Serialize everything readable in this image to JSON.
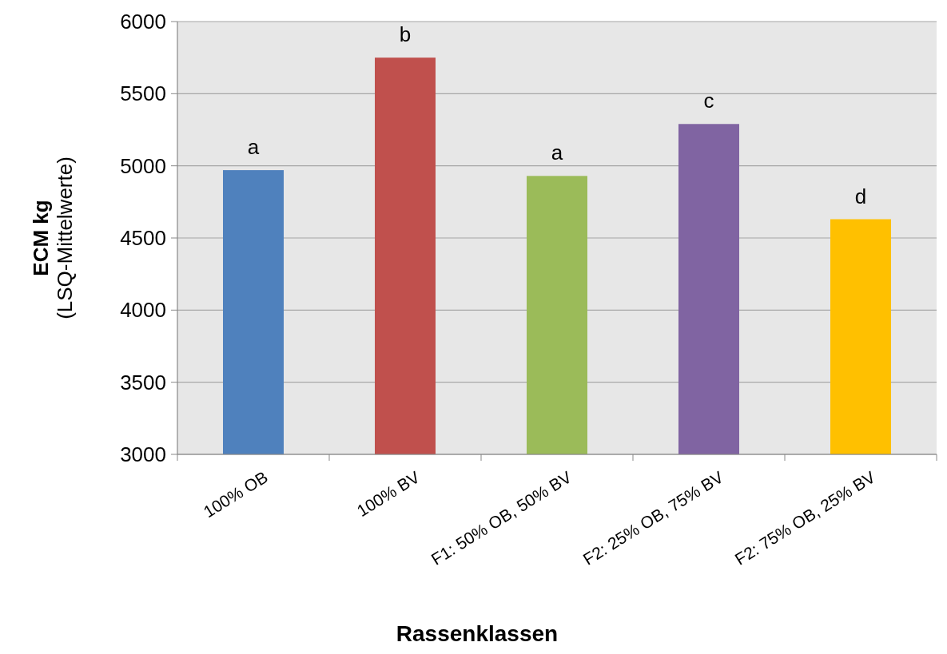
{
  "chart_data": {
    "type": "bar",
    "xlabel": "Rassenklassen",
    "ylabel": "ECM kg\n(LSQ-Mittelwerte)",
    "categories": [
      "100% OB",
      "100% BV",
      "F1: 50% OB, 50% BV",
      "F2: 25% OB, 75% BV",
      "F2: 75% OB, 25% BV"
    ],
    "values": [
      4970,
      5750,
      4930,
      5290,
      4630
    ],
    "colors": [
      "#4f81bd",
      "#c0504d",
      "#9bbb59",
      "#8064a2",
      "#ffc000"
    ],
    "ylim": [
      3000,
      6000
    ],
    "yticks": [
      3000,
      3500,
      4000,
      4500,
      5000,
      5500,
      6000
    ],
    "grid": "y",
    "annotations": [
      {
        "text": "a",
        "x": "100% OB",
        "y": 4970
      },
      {
        "text": "b",
        "x": "100% BV",
        "y": 5750
      },
      {
        "text": "a",
        "x": "F1: 50% OB, 50% BV",
        "y": 4930
      },
      {
        "text": "c",
        "x": "F2: 25% OB, 75% BV",
        "y": 5290
      },
      {
        "text": "d",
        "x": "F2: 75% OB, 25% BV",
        "y": 4630
      }
    ]
  }
}
